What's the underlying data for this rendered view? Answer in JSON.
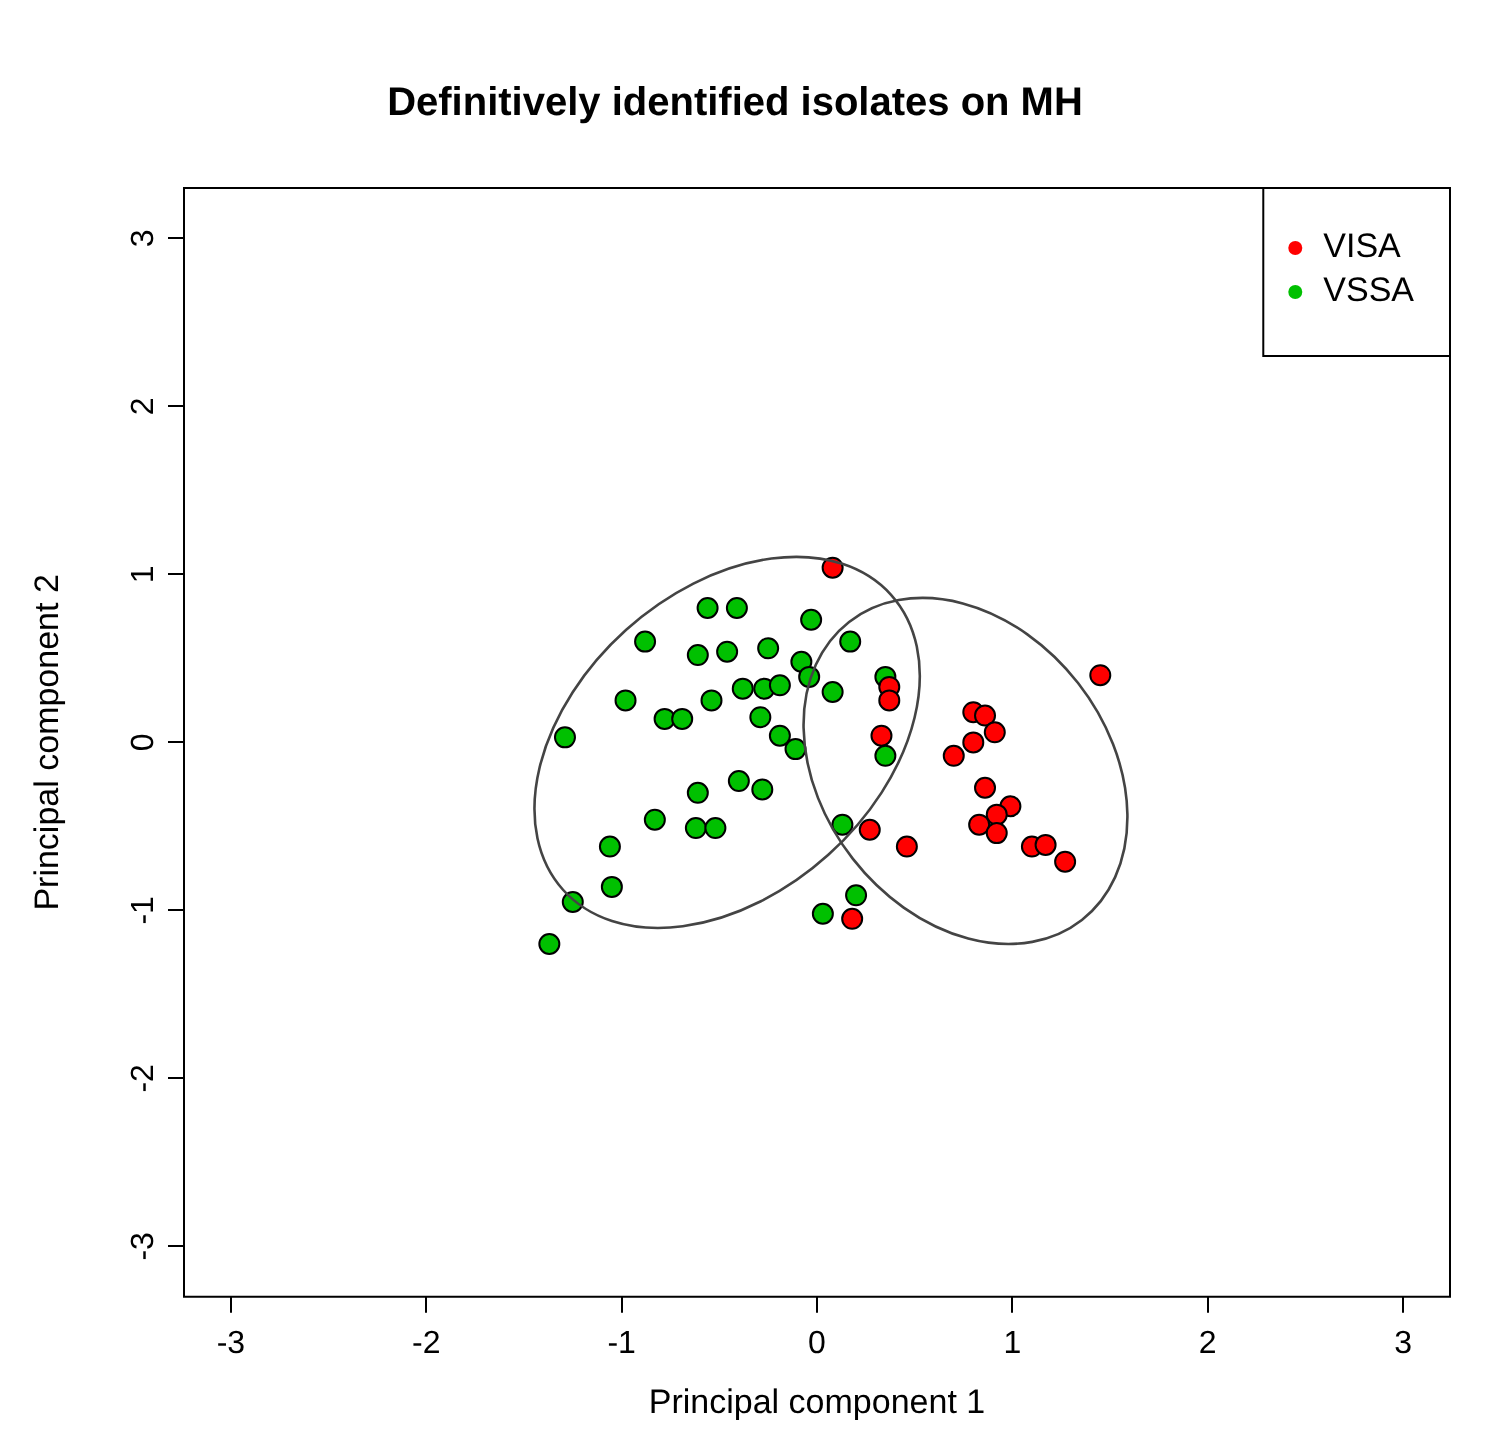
{
  "chart_data": {
    "type": "scatter",
    "title": "Definitively identified isolates on MH",
    "xlabel": "Principal component 1",
    "ylabel": "Principal component 2",
    "xlim": [
      -3.24,
      3.24
    ],
    "ylim": [
      -3.3,
      3.3
    ],
    "xticks": [
      -3,
      -2,
      -1,
      0,
      1,
      2,
      3
    ],
    "yticks": [
      -3,
      -2,
      -1,
      0,
      1,
      2,
      3
    ],
    "grid": false,
    "legend": "top right",
    "marker": "circle",
    "series": [
      {
        "name": "VISA",
        "color": "#ff0000",
        "x": [
          0.08,
          0.37,
          0.37,
          0.33,
          0.27,
          0.46,
          0.18,
          0.8,
          0.86,
          0.91,
          0.8,
          0.7,
          0.86,
          0.99,
          0.92,
          0.83,
          0.92,
          1.1,
          1.17,
          1.27,
          1.45
        ],
        "values": [
          1.04,
          0.33,
          0.25,
          0.04,
          -0.52,
          -0.62,
          -1.05,
          0.18,
          0.16,
          0.06,
          0.0,
          -0.08,
          -0.27,
          -0.38,
          -0.43,
          -0.49,
          -0.54,
          -0.62,
          -0.61,
          -0.71,
          0.4
        ]
      },
      {
        "name": "VSSA",
        "color": "#00c000",
        "x": [
          -1.37,
          -1.25,
          -1.05,
          -1.06,
          -0.83,
          -0.61,
          -0.62,
          -0.52,
          -0.4,
          -0.28,
          -1.29,
          -0.98,
          -0.78,
          -0.69,
          -0.54,
          -0.88,
          -0.61,
          -0.56,
          -0.41,
          -0.46,
          -0.25,
          -0.38,
          -0.27,
          -0.19,
          -0.29,
          -0.19,
          -0.11,
          -0.08,
          -0.04,
          -0.03,
          0.08,
          0.17,
          0.35,
          0.35,
          0.13,
          0.2,
          0.03
        ],
        "values": [
          -1.2,
          -0.95,
          -0.86,
          -0.62,
          -0.46,
          -0.3,
          -0.51,
          -0.51,
          -0.23,
          -0.28,
          0.03,
          0.25,
          0.14,
          0.14,
          0.25,
          0.6,
          0.52,
          0.8,
          0.8,
          0.54,
          0.56,
          0.32,
          0.32,
          0.34,
          0.15,
          0.04,
          -0.04,
          0.48,
          0.39,
          0.73,
          0.3,
          0.6,
          0.39,
          -0.08,
          -0.49,
          -0.91,
          -1.02
        ]
      }
    ]
  }
}
